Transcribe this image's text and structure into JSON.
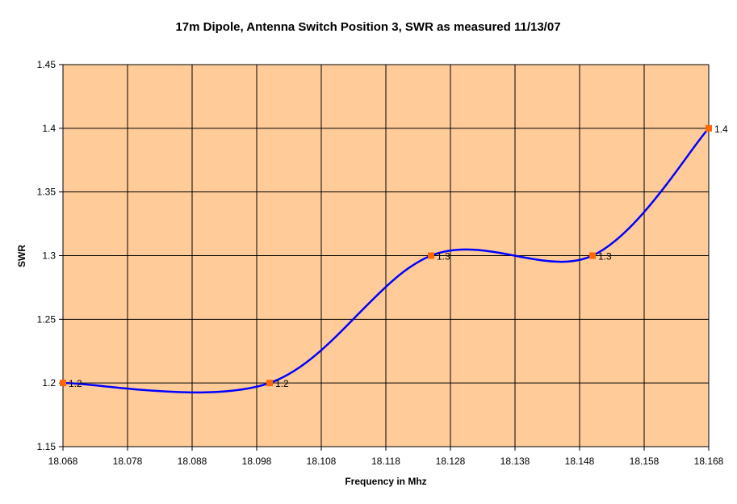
{
  "chart_data": {
    "type": "line",
    "title": "17m Dipole, Antenna Switch Position 3, SWR as measured 11/13/07",
    "xlabel": "Frequency in Mhz",
    "ylabel": "SWR",
    "xlim": [
      18.068,
      18.168
    ],
    "ylim": [
      1.15,
      1.45
    ],
    "x_ticks": [
      "18.068",
      "18.078",
      "18.088",
      "18.098",
      "18.108",
      "18.118",
      "18.128",
      "18.138",
      "18.148",
      "18.158",
      "18.168"
    ],
    "y_ticks": [
      "1.15",
      "1.2",
      "1.25",
      "1.3",
      "1.35",
      "1.4",
      "1.45"
    ],
    "grid": true,
    "smooth": true,
    "plot_background": "#ffcc99",
    "line_color": "#0000ff",
    "marker_color": "#ff6600",
    "series": [
      {
        "points": [
          {
            "x": 18.068,
            "y": 1.2,
            "label": "1.2"
          },
          {
            "x": 18.1,
            "y": 1.2,
            "label": "1.2"
          },
          {
            "x": 18.125,
            "y": 1.3,
            "label": "1.3"
          },
          {
            "x": 18.15,
            "y": 1.3,
            "label": "1.3"
          },
          {
            "x": 18.168,
            "y": 1.4,
            "label": "1.4"
          }
        ]
      }
    ]
  }
}
